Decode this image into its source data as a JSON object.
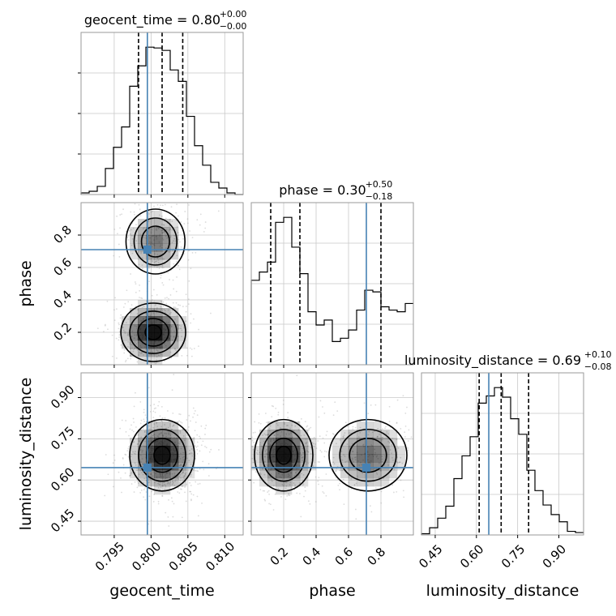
{
  "chart_data": {
    "type": "corner",
    "parameters": [
      "geocent_time",
      "phase",
      "luminosity_distance"
    ],
    "truths": {
      "geocent_time": 0.7995,
      "phase": 0.71,
      "luminosity_distance": 0.645
    },
    "panels": {
      "geocent_time": {
        "title": {
          "main": "geocent_time = 0.80",
          "sup": "+0.00",
          "sub": "−0.00"
        },
        "xlim": [
          0.7905,
          0.8125
        ],
        "ticks": [
          0.795,
          0.8,
          0.805,
          0.81
        ],
        "tick_labels": [
          "0.795",
          "0.800",
          "0.805",
          "0.810"
        ],
        "quantiles": [
          0.7983,
          0.8015,
          0.8043
        ],
        "hist": {
          "edges": [
            0.7905,
            0.7916,
            0.7927,
            0.7938,
            0.7949,
            0.796,
            0.7971,
            0.7982,
            0.7993,
            0.8004,
            0.8015,
            0.8026,
            0.8037,
            0.8048,
            0.8059,
            0.807,
            0.8081,
            0.8092,
            0.8103,
            0.8114,
            0.8125
          ],
          "counts": [
            2,
            4,
            10,
            32,
            58,
            83,
            133,
            158,
            181,
            180,
            177,
            153,
            139,
            96,
            60,
            36,
            15,
            8,
            2,
            0
          ]
        }
      },
      "phase": {
        "title": {
          "main": "phase = 0.30",
          "sup": "+0.50",
          "sub": "−0.18"
        },
        "xlim": [
          0.0,
          1.0
        ],
        "ticks": [
          0.2,
          0.4,
          0.6,
          0.8
        ],
        "tick_labels": [
          "0.2",
          "0.4",
          "0.6",
          "0.8"
        ],
        "quantiles": [
          0.12,
          0.3,
          0.8
        ],
        "hist": {
          "edges": [
            0.0,
            0.05,
            0.1,
            0.15,
            0.2,
            0.25,
            0.3,
            0.35,
            0.4,
            0.45,
            0.5,
            0.55,
            0.6,
            0.65,
            0.7,
            0.75,
            0.8,
            0.85,
            0.9,
            0.95,
            1.0
          ],
          "counts": [
            51,
            56,
            62,
            86,
            89,
            71,
            55,
            32,
            24,
            27,
            14,
            16,
            21,
            33,
            45,
            44,
            35,
            33,
            32,
            37
          ]
        }
      },
      "luminosity_distance": {
        "title": {
          "main": "luminosity_distance = 0.69",
          "sup": "+0.10",
          "sub": "−0.08"
        },
        "xlim": [
          0.4,
          0.99
        ],
        "ticks": [
          0.45,
          0.6,
          0.75,
          0.9
        ],
        "tick_labels": [
          "0.45",
          "0.60",
          "0.75",
          "0.90"
        ],
        "quantiles": [
          0.61,
          0.69,
          0.79
        ],
        "hist": {
          "edges": [
            0.4,
            0.4295,
            0.459,
            0.4885,
            0.518,
            0.5475,
            0.577,
            0.6065,
            0.636,
            0.6655,
            0.695,
            0.7245,
            0.754,
            0.7835,
            0.813,
            0.8425,
            0.872,
            0.9015,
            0.931,
            0.9605,
            0.99
          ],
          "counts": [
            1,
            6,
            14,
            24,
            47,
            66,
            82,
            110,
            116,
            123,
            115,
            97,
            84,
            54,
            37,
            25,
            17,
            11,
            3,
            2
          ]
        }
      }
    },
    "pairs": [
      {
        "x": "geocent_time",
        "y": "phase",
        "ylim": [
          0.0,
          1.0
        ],
        "yticks": [
          0.2,
          0.4,
          0.6,
          0.8
        ],
        "ytick_labels": [
          "0.2",
          "0.4",
          "0.6",
          "0.8"
        ],
        "blobs": [
          {
            "cx": 0.8003,
            "cy": 0.2,
            "sx": 0.0022,
            "sy": 0.09,
            "w": 1.0
          },
          {
            "cx": 0.8006,
            "cy": 0.76,
            "sx": 0.002,
            "sy": 0.1,
            "w": 0.55
          }
        ]
      },
      {
        "x": "geocent_time",
        "y": "luminosity_distance",
        "ylim": [
          0.4,
          0.99
        ],
        "yticks": [
          0.45,
          0.6,
          0.75,
          0.9
        ],
        "ytick_labels": [
          "0.45",
          "0.60",
          "0.75",
          "0.90"
        ],
        "blobs": [
          {
            "cx": 0.8015,
            "cy": 0.69,
            "sx": 0.0022,
            "sy": 0.065,
            "w": 1.0
          }
        ]
      },
      {
        "x": "phase",
        "y": "luminosity_distance",
        "ylim": [
          0.4,
          0.99
        ],
        "yticks": [
          0.45,
          0.6,
          0.75,
          0.9
        ],
        "ytick_labels": [
          "0.45",
          "0.60",
          "0.75",
          "0.90"
        ],
        "blobs": [
          {
            "cx": 0.2,
            "cy": 0.69,
            "sx": 0.09,
            "sy": 0.065,
            "w": 1.0
          },
          {
            "cx": 0.72,
            "cy": 0.69,
            "sx": 0.12,
            "sy": 0.065,
            "w": 0.6
          }
        ]
      }
    ],
    "xlabels": [
      "geocent_time",
      "phase",
      "luminosity_distance"
    ],
    "ylabels": [
      "phase",
      "luminosity_distance"
    ],
    "colors": {
      "truth": "#4682b4",
      "hist": "#000000",
      "grid": "#c8c8c8",
      "density": "#000000"
    },
    "grid": true
  }
}
